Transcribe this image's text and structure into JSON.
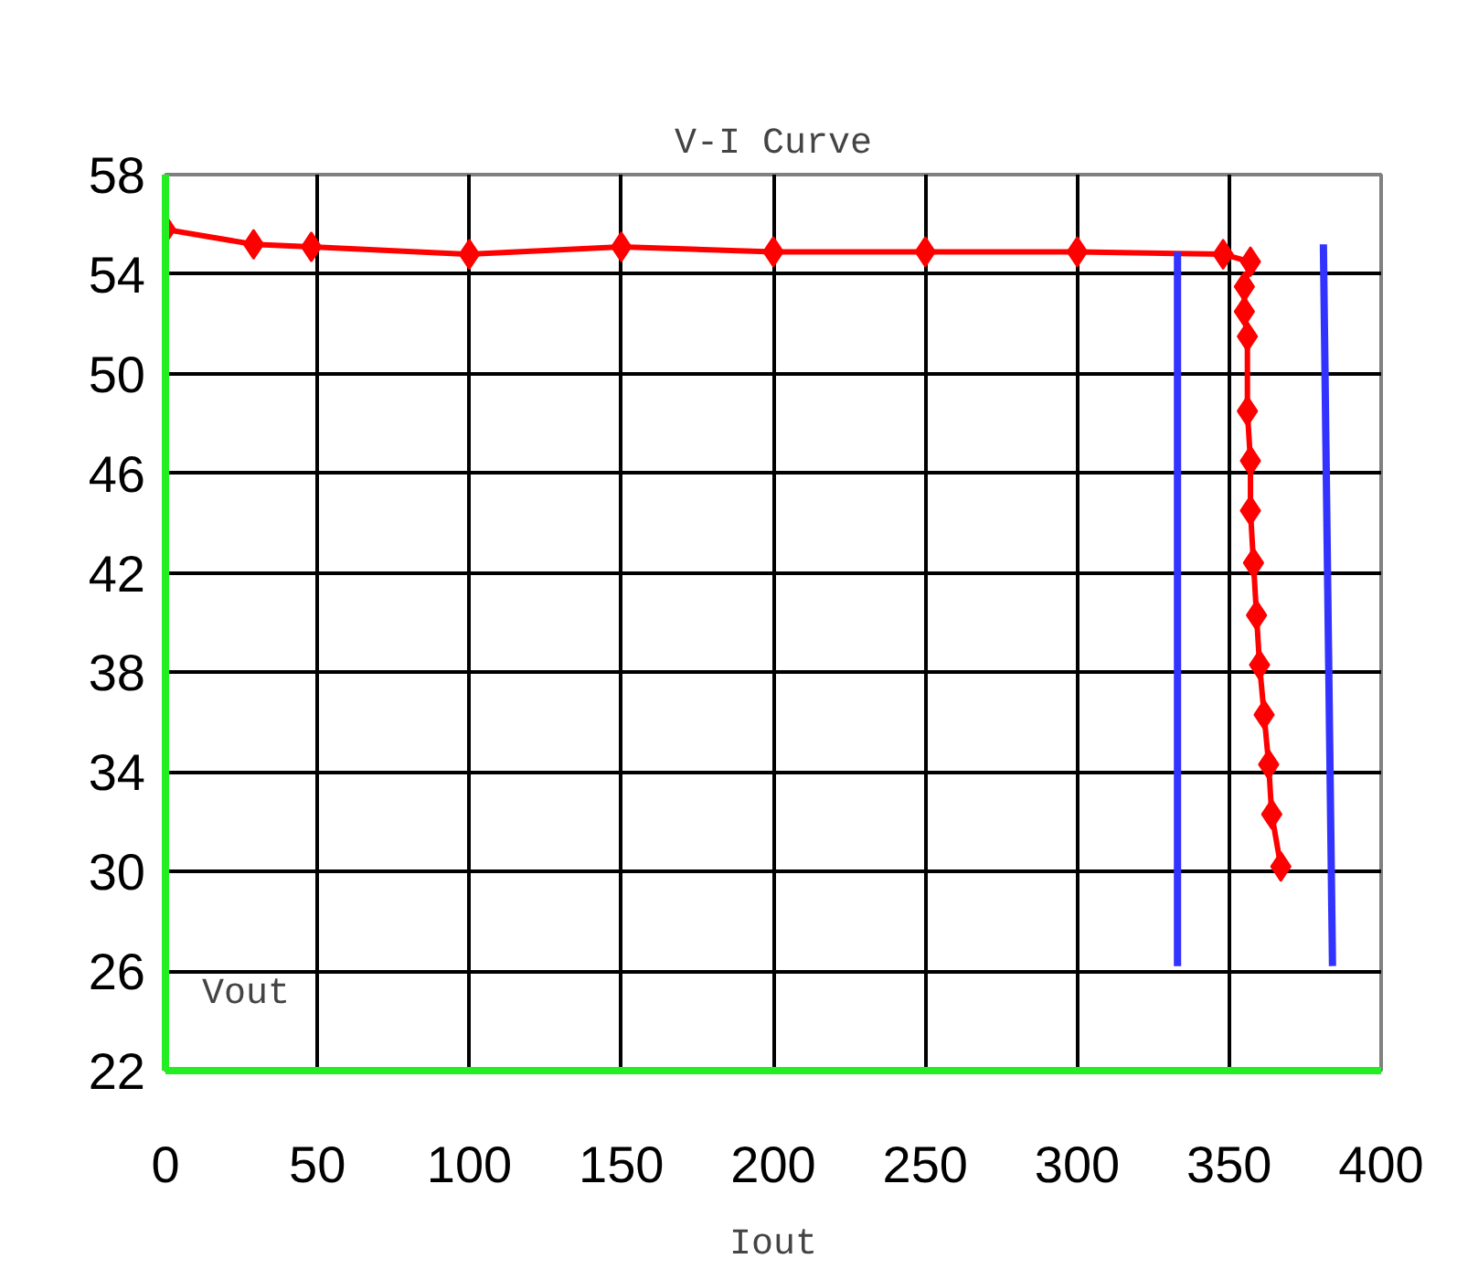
{
  "chart_data": {
    "type": "line",
    "title": "V-I Curve",
    "xlabel": "Iout",
    "ylabel": "Vout",
    "xlim": [
      0,
      400
    ],
    "xticks": [
      0,
      50,
      100,
      150,
      200,
      250,
      300,
      350,
      400
    ],
    "ylim": [
      22,
      58
    ],
    "yticks": [
      22,
      26,
      30,
      34,
      38,
      42,
      46,
      50,
      54,
      58
    ],
    "grid": true,
    "line_style": "solid",
    "series": [
      {
        "color": "#ff0000",
        "marker": "diamond",
        "x": [
          0,
          29,
          48,
          100,
          150,
          200,
          250,
          300,
          348,
          357,
          355,
          355,
          356,
          356,
          357,
          357,
          358,
          359,
          360,
          361.5,
          363,
          364,
          367
        ],
        "values": [
          55.8,
          55.2,
          55.1,
          54.8,
          55.1,
          54.9,
          54.9,
          54.9,
          54.8,
          54.5,
          53.5,
          52.5,
          51.5,
          48.5,
          46.5,
          44.5,
          42.4,
          40.3,
          38.3,
          36.3,
          34.3,
          32.3,
          30.2
        ]
      },
      {
        "color": "#3333ff",
        "marker": "none",
        "x": [
          333,
          333
        ],
        "values": [
          54.9,
          26.2
        ]
      },
      {
        "color": "#3333ff",
        "marker": "none",
        "x": [
          381,
          384
        ],
        "values": [
          55.2,
          26.2
        ]
      }
    ]
  }
}
